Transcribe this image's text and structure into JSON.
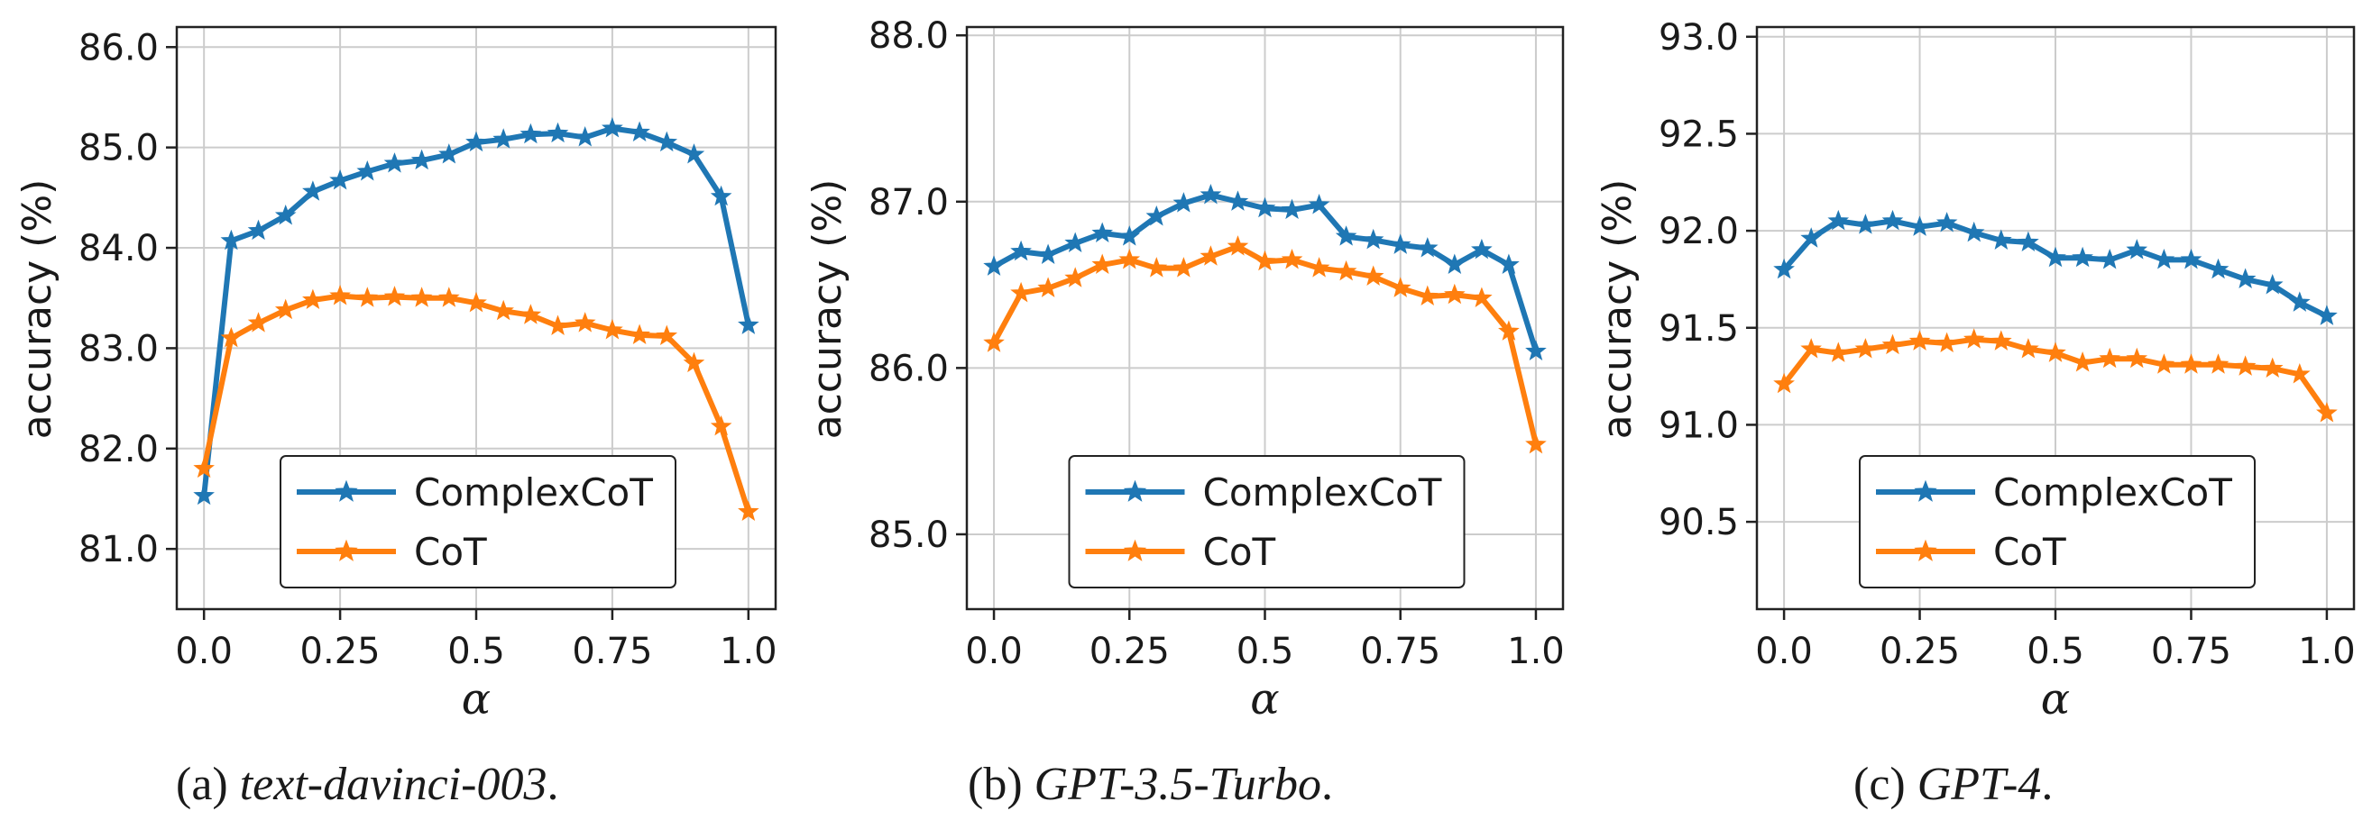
{
  "chart_data": [
    {
      "type": "line",
      "caption_prefix": "(a)",
      "caption_model": "text-davinci-003",
      "caption_suffix": ".",
      "xlabel": "α",
      "ylabel": "accuracy (%)",
      "xlim": [
        -0.05,
        1.05
      ],
      "ylim": [
        80.4,
        86.2
      ],
      "xticks": [
        0,
        0.25,
        0.5,
        0.75,
        1.0
      ],
      "xtick_labels": [
        "0.0",
        "0.25",
        "0.5",
        "0.75",
        "1.0"
      ],
      "yticks": [
        81,
        82,
        83,
        84,
        85,
        86
      ],
      "ytick_labels": [
        "81.0",
        "82.0",
        "83.0",
        "84.0",
        "85.0",
        "86.0"
      ],
      "grid": true,
      "legend": "lower-center",
      "x": [
        0,
        0.05,
        0.1,
        0.15,
        0.2,
        0.25,
        0.3,
        0.35,
        0.4,
        0.45,
        0.5,
        0.55,
        0.6,
        0.65,
        0.7,
        0.75,
        0.8,
        0.85,
        0.9,
        0.95,
        1.0
      ],
      "series": [
        {
          "name": "ComplexCoT",
          "color": "#1f77b4",
          "values": [
            81.53,
            84.07,
            84.17,
            84.32,
            84.56,
            84.67,
            84.76,
            84.84,
            84.87,
            84.93,
            85.05,
            85.08,
            85.13,
            85.14,
            85.1,
            85.19,
            85.15,
            85.05,
            84.93,
            84.51,
            83.23
          ]
        },
        {
          "name": "CoT",
          "color": "#ff7f0e",
          "values": [
            81.8,
            83.1,
            83.25,
            83.38,
            83.48,
            83.52,
            83.5,
            83.51,
            83.5,
            83.5,
            83.45,
            83.37,
            83.33,
            83.22,
            83.25,
            83.18,
            83.13,
            83.12,
            82.85,
            82.22,
            81.37
          ]
        }
      ]
    },
    {
      "type": "line",
      "caption_prefix": "(b)",
      "caption_model": "GPT-3.5-Turbo",
      "caption_suffix": ".",
      "xlabel": "α",
      "ylabel": "accuracy (%)",
      "xlim": [
        -0.05,
        1.05
      ],
      "ylim": [
        84.55,
        88.05
      ],
      "xticks": [
        0,
        0.25,
        0.5,
        0.75,
        1.0
      ],
      "xtick_labels": [
        "0.0",
        "0.25",
        "0.5",
        "0.75",
        "1.0"
      ],
      "yticks": [
        85,
        86,
        87,
        88
      ],
      "ytick_labels": [
        "85.0",
        "86.0",
        "87.0",
        "88.0"
      ],
      "grid": true,
      "legend": "lower-center",
      "x": [
        0,
        0.05,
        0.1,
        0.15,
        0.2,
        0.25,
        0.3,
        0.35,
        0.4,
        0.45,
        0.5,
        0.55,
        0.6,
        0.65,
        0.7,
        0.75,
        0.8,
        0.85,
        0.9,
        0.95,
        1.0
      ],
      "series": [
        {
          "name": "ComplexCoT",
          "color": "#1f77b4",
          "values": [
            86.61,
            86.7,
            86.68,
            86.75,
            86.81,
            86.79,
            86.91,
            86.99,
            87.04,
            87.0,
            86.96,
            86.95,
            86.98,
            86.79,
            86.77,
            86.74,
            86.72,
            86.62,
            86.71,
            86.62,
            86.1
          ]
        },
        {
          "name": "CoT",
          "color": "#ff7f0e",
          "values": [
            86.15,
            86.45,
            86.48,
            86.54,
            86.62,
            86.65,
            86.6,
            86.6,
            86.67,
            86.73,
            86.64,
            86.65,
            86.6,
            86.58,
            86.55,
            86.48,
            86.43,
            86.44,
            86.42,
            86.22,
            85.54
          ]
        }
      ]
    },
    {
      "type": "line",
      "caption_prefix": "(c)",
      "caption_model": "GPT-4",
      "caption_suffix": ".",
      "xlabel": "α",
      "ylabel": "accuracy (%)",
      "xlim": [
        -0.05,
        1.05
      ],
      "ylim": [
        90.05,
        93.05
      ],
      "xticks": [
        0,
        0.25,
        0.5,
        0.75,
        1.0
      ],
      "xtick_labels": [
        "0.0",
        "0.25",
        "0.5",
        "0.75",
        "1.0"
      ],
      "yticks": [
        90.5,
        91.0,
        91.5,
        92.0,
        92.5,
        93.0
      ],
      "ytick_labels": [
        "90.5",
        "91.0",
        "91.5",
        "92.0",
        "92.5",
        "93.0"
      ],
      "grid": true,
      "legend": "lower-center",
      "x": [
        0,
        0.05,
        0.1,
        0.15,
        0.2,
        0.25,
        0.3,
        0.35,
        0.4,
        0.45,
        0.5,
        0.55,
        0.6,
        0.65,
        0.7,
        0.75,
        0.8,
        0.85,
        0.9,
        0.95,
        1.0
      ],
      "series": [
        {
          "name": "ComplexCoT",
          "color": "#1f77b4",
          "values": [
            91.8,
            91.96,
            92.05,
            92.03,
            92.05,
            92.02,
            92.04,
            91.99,
            91.95,
            91.94,
            91.86,
            91.86,
            91.85,
            91.9,
            91.85,
            91.85,
            91.8,
            91.75,
            91.72,
            91.63,
            91.56
          ]
        },
        {
          "name": "CoT",
          "color": "#ff7f0e",
          "values": [
            91.21,
            91.39,
            91.37,
            91.39,
            91.41,
            91.43,
            91.42,
            91.44,
            91.43,
            91.39,
            91.37,
            91.32,
            91.34,
            91.34,
            91.31,
            91.31,
            91.31,
            91.3,
            91.29,
            91.26,
            91.06
          ]
        }
      ]
    }
  ]
}
